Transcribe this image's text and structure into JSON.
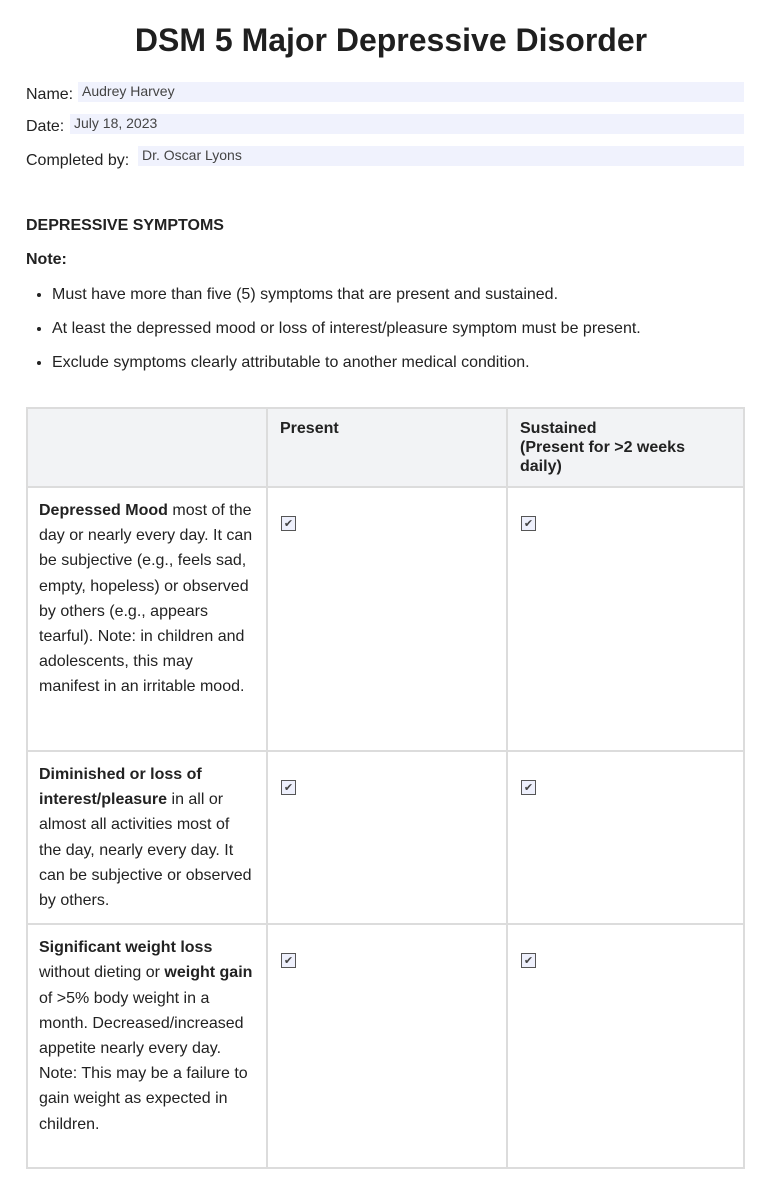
{
  "title": "DSM 5 Major Depressive Disorder",
  "fields": [
    {
      "label": "Name:",
      "value": "Audrey Harvey"
    },
    {
      "label": "Date:",
      "value": "July 18, 2023"
    },
    {
      "label": "Completed by:",
      "value": "Dr. Oscar Lyons"
    }
  ],
  "section_title": "DEPRESSIVE SYMPTOMS",
  "note_label": "Note:",
  "notes": [
    "Must have more than five (5) symptoms that are present and sustained.",
    "At least the depressed mood or loss of interest/pleasure symptom must be present.",
    "Exclude symptoms clearly attributable to another medical condition."
  ],
  "table": {
    "headers": [
      "",
      "Present",
      "Sustained\n(Present for >2 weeks daily)"
    ],
    "rows": [
      {
        "segments": [
          {
            "text": "Depressed Mood",
            "bold": true
          },
          {
            "text": " most of the day or nearly every day. It can be subjective (e.g., feels sad, empty, hopeless) or observed by others (e.g., appears tearful). Note: in children and adolescents, this may manifest in an irritable mood.",
            "bold": false
          }
        ],
        "present": true,
        "sustained": true
      },
      {
        "segments": [
          {
            "text": "Diminished or loss of interest/pleasure",
            "bold": true
          },
          {
            "text": " in all or almost all activities most of the day, nearly every day. It can be subjective or observed by others.",
            "bold": false
          }
        ],
        "present": true,
        "sustained": true
      },
      {
        "segments": [
          {
            "text": "Significant weight loss",
            "bold": true
          },
          {
            "text": " without dieting or ",
            "bold": false
          },
          {
            "text": "weight gain",
            "bold": true
          },
          {
            "text": " of >5% body weight in a month. Decreased/increased appetite nearly every day. Note: This may be a failure to gain weight as expected in children.",
            "bold": false
          }
        ],
        "present": true,
        "sustained": true
      }
    ]
  },
  "checkbox_icon": "checkmark-icon"
}
